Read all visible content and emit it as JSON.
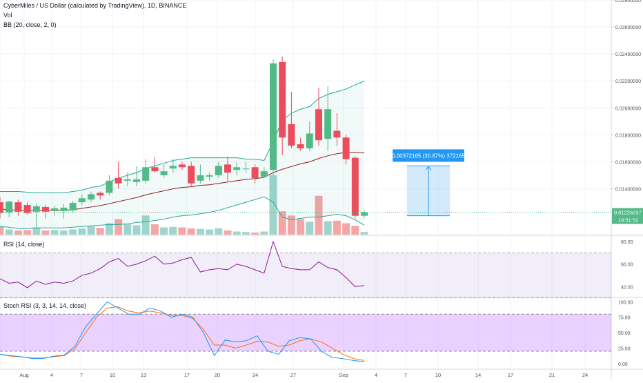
{
  "header": {
    "symbol_title": "CyberMiles / US Dollar (calculated by TradingView), 1D, BINANCE",
    "vol_label": "Vol",
    "bb_label": "BB (20, close, 2, 0)"
  },
  "price_axis": {
    "ticks": [
      "0.02800000",
      "0.02600000",
      "0.02400000",
      "0.02200000",
      "0.02000000",
      "0.01800000",
      "0.01600000",
      "0.01400000"
    ],
    "current_price": "0.01226237",
    "countdown": "19:51:52"
  },
  "measure_tool": {
    "label": "0.00372165 (30.87%) 372165"
  },
  "rsi_pane": {
    "title": "RSI (14, close)",
    "ticks": [
      "80.00",
      "60.00",
      "40.00"
    ]
  },
  "stoch_pane": {
    "title": "Stoch RSI (3, 3, 14, 14, close)",
    "ticks": [
      "100.00",
      "75.00",
      "50.00",
      "25.00",
      "0.00"
    ]
  },
  "time_axis": {
    "labels": [
      "Aug",
      "4",
      "7",
      "10",
      "13",
      "17",
      "20",
      "24",
      "27",
      "Sep",
      "4",
      "7",
      "10",
      "14",
      "17",
      "21",
      "24"
    ]
  },
  "colors": {
    "up": "#53b987",
    "down": "#eb4d5c",
    "vol_up": "#9fd5cc",
    "vol_down": "#f4a6a6",
    "bb_band": "#26a69a",
    "bb_basis": "#8b1a1a",
    "rsi_line": "#8e1599",
    "stoch_k": "#2196f3",
    "stoch_d": "#ff6d00",
    "measure": "#2196f3"
  },
  "chart_data": {
    "type": "candlestick",
    "candles": [
      {
        "o": 0.013,
        "h": 0.0134,
        "l": 0.0118,
        "c": 0.0122
      },
      {
        "o": 0.01225,
        "h": 0.0131,
        "l": 0.0119,
        "c": 0.01305
      },
      {
        "o": 0.013,
        "h": 0.0132,
        "l": 0.012,
        "c": 0.0123
      },
      {
        "o": 0.0128,
        "h": 0.013,
        "l": 0.0121,
        "c": 0.0122
      },
      {
        "o": 0.0123,
        "h": 0.0129,
        "l": 0.0111,
        "c": 0.0127
      },
      {
        "o": 0.01265,
        "h": 0.0128,
        "l": 0.0118,
        "c": 0.0123
      },
      {
        "o": 0.0124,
        "h": 0.01275,
        "l": 0.012,
        "c": 0.01255
      },
      {
        "o": 0.01235,
        "h": 0.0129,
        "l": 0.0118,
        "c": 0.0126
      },
      {
        "o": 0.0124,
        "h": 0.0131,
        "l": 0.0122,
        "c": 0.01295
      },
      {
        "o": 0.013,
        "h": 0.0136,
        "l": 0.0128,
        "c": 0.0133
      },
      {
        "o": 0.0132,
        "h": 0.0138,
        "l": 0.013,
        "c": 0.0136
      },
      {
        "o": 0.0137,
        "h": 0.0138,
        "l": 0.0132,
        "c": 0.0135
      },
      {
        "o": 0.0137,
        "h": 0.015,
        "l": 0.0135,
        "c": 0.0146
      },
      {
        "o": 0.0148,
        "h": 0.016,
        "l": 0.014,
        "c": 0.0144
      },
      {
        "o": 0.0146,
        "h": 0.0152,
        "l": 0.0142,
        "c": 0.0147
      },
      {
        "o": 0.0145,
        "h": 0.0157,
        "l": 0.0142,
        "c": 0.0147
      },
      {
        "o": 0.0146,
        "h": 0.0162,
        "l": 0.0144,
        "c": 0.0156
      },
      {
        "o": 0.0156,
        "h": 0.0164,
        "l": 0.0152,
        "c": 0.0153
      },
      {
        "o": 0.015,
        "h": 0.0158,
        "l": 0.0148,
        "c": 0.0153
      },
      {
        "o": 0.0155,
        "h": 0.0162,
        "l": 0.0152,
        "c": 0.0157
      },
      {
        "o": 0.0158,
        "h": 0.016,
        "l": 0.0154,
        "c": 0.0156
      },
      {
        "o": 0.0157,
        "h": 0.016,
        "l": 0.0142,
        "c": 0.0144
      },
      {
        "o": 0.0146,
        "h": 0.0158,
        "l": 0.0144,
        "c": 0.015
      },
      {
        "o": 0.0149,
        "h": 0.0152,
        "l": 0.0146,
        "c": 0.015
      },
      {
        "o": 0.015,
        "h": 0.016,
        "l": 0.0148,
        "c": 0.0157
      },
      {
        "o": 0.0158,
        "h": 0.0164,
        "l": 0.0146,
        "c": 0.0152
      },
      {
        "o": 0.0154,
        "h": 0.016,
        "l": 0.015,
        "c": 0.0156
      },
      {
        "o": 0.0155,
        "h": 0.016,
        "l": 0.0152,
        "c": 0.0155
      },
      {
        "o": 0.0156,
        "h": 0.0158,
        "l": 0.0144,
        "c": 0.0148
      },
      {
        "o": 0.0149,
        "h": 0.0156,
        "l": 0.0148,
        "c": 0.0153
      },
      {
        "o": 0.0154,
        "h": 0.0236,
        "l": 0.015,
        "c": 0.0233
      },
      {
        "o": 0.0234,
        "h": 0.0238,
        "l": 0.0165,
        "c": 0.0178
      },
      {
        "o": 0.0188,
        "h": 0.0212,
        "l": 0.017,
        "c": 0.0172
      },
      {
        "o": 0.0173,
        "h": 0.0178,
        "l": 0.0168,
        "c": 0.017
      },
      {
        "o": 0.017,
        "h": 0.019,
        "l": 0.0168,
        "c": 0.0181
      },
      {
        "o": 0.0199,
        "h": 0.0215,
        "l": 0.0172,
        "c": 0.0176
      },
      {
        "o": 0.0177,
        "h": 0.0216,
        "l": 0.0168,
        "c": 0.0199
      },
      {
        "o": 0.0183,
        "h": 0.0196,
        "l": 0.0172,
        "c": 0.0178
      },
      {
        "o": 0.0178,
        "h": 0.018,
        "l": 0.0158,
        "c": 0.0162
      },
      {
        "o": 0.0163,
        "h": 0.0164,
        "l": 0.0118,
        "c": 0.012
      },
      {
        "o": 0.012,
        "h": 0.0124,
        "l": 0.0118,
        "c": 0.01226
      }
    ],
    "volume": [
      0.15,
      0.1,
      0.08,
      0.09,
      0.14,
      0.08,
      0.09,
      0.08,
      0.1,
      0.12,
      0.16,
      0.13,
      0.22,
      0.3,
      0.2,
      0.18,
      0.37,
      0.2,
      0.14,
      0.15,
      0.14,
      0.12,
      0.11,
      0.1,
      0.12,
      0.08,
      0.06,
      0.05,
      0.04,
      0.06,
      1.15,
      0.45,
      0.37,
      0.3,
      0.25,
      0.75,
      0.26,
      0.27,
      0.22,
      0.17,
      0.05
    ],
    "bb_upper": [
      0.0138,
      0.0138,
      0.0138,
      0.01375,
      0.0137,
      0.0137,
      0.0137,
      0.0137,
      0.0138,
      0.0139,
      0.0141,
      0.0142,
      0.0145,
      0.0148,
      0.015,
      0.0152,
      0.0155,
      0.0157,
      0.0159,
      0.0161,
      0.0162,
      0.0163,
      0.0163,
      0.0163,
      0.0163,
      0.0163,
      0.0163,
      0.0162,
      0.0162,
      0.0161,
      0.0175,
      0.0191,
      0.0196,
      0.0199,
      0.0201,
      0.0207,
      0.021,
      0.0212,
      0.0214,
      0.0217,
      0.022
    ],
    "bb_basis": [
      0.0125,
      0.01245,
      0.0124,
      0.0124,
      0.0124,
      0.0124,
      0.0124,
      0.0124,
      0.01245,
      0.01255,
      0.01265,
      0.01275,
      0.0129,
      0.01305,
      0.0132,
      0.01335,
      0.01355,
      0.0137,
      0.01385,
      0.014,
      0.0141,
      0.01415,
      0.01425,
      0.0143,
      0.0144,
      0.0145,
      0.0146,
      0.0147,
      0.01475,
      0.01485,
      0.0152,
      0.01545,
      0.01565,
      0.01585,
      0.016,
      0.01625,
      0.01645,
      0.0166,
      0.0167,
      0.0167,
      0.01665
    ],
    "bb_lower": [
      0.0112,
      0.01115,
      0.01105,
      0.01105,
      0.0111,
      0.0111,
      0.0111,
      0.0111,
      0.01115,
      0.0112,
      0.01125,
      0.0113,
      0.01135,
      0.01135,
      0.0114,
      0.0115,
      0.01155,
      0.01165,
      0.01175,
      0.0119,
      0.012,
      0.01205,
      0.01215,
      0.01225,
      0.0124,
      0.0126,
      0.0128,
      0.013,
      0.0132,
      0.0134,
      0.013,
      0.0119,
      0.0117,
      0.0118,
      0.0119,
      0.0119,
      0.012,
      0.0121,
      0.012,
      0.0117,
      0.0113
    ],
    "rsi": [
      47,
      43,
      44,
      39,
      45,
      42,
      44,
      43,
      45,
      50,
      52,
      56,
      62,
      65,
      58,
      60,
      63,
      67,
      60,
      61,
      64,
      66,
      53,
      55,
      56,
      55,
      60,
      58,
      55,
      52,
      80,
      58,
      56,
      55,
      55,
      62,
      57,
      55,
      48,
      40,
      41
    ],
    "stoch_k": [
      15,
      13,
      11,
      8,
      8,
      12,
      14,
      28,
      60,
      80,
      100,
      90,
      80,
      80,
      90,
      85,
      75,
      80,
      75,
      50,
      13,
      38,
      35,
      37,
      45,
      20,
      15,
      37,
      42,
      40,
      20,
      10,
      8,
      5,
      3
    ],
    "stoch_d": [
      15,
      12,
      11,
      9,
      9,
      11,
      13,
      24,
      50,
      75,
      90,
      92,
      85,
      82,
      85,
      82,
      78,
      78,
      73,
      55,
      30,
      30,
      25,
      30,
      36,
      35,
      28,
      30,
      37,
      40,
      35,
      25,
      15,
      8,
      5
    ],
    "price_range": [
      0.0106,
      0.028
    ],
    "rsi_range": [
      31,
      85
    ],
    "stoch_range": [
      -8,
      106
    ]
  }
}
